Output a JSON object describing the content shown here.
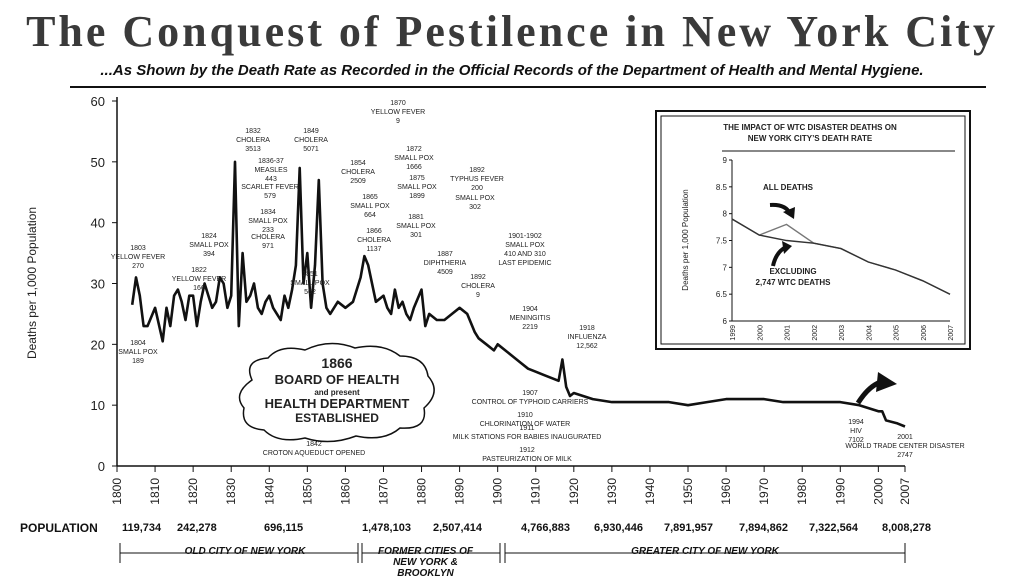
{
  "title": "The Conquest of Pestilence in New York City",
  "subtitle": "...As Shown by the Death Rate as Recorded in the Official Records of the Department of Health and Mental Hygiene.",
  "chart_data": [
    {
      "type": "line",
      "ylabel": "Deaths per 1,000 Population",
      "ylim": [
        0,
        60
      ],
      "xlim": [
        1800,
        2007
      ],
      "yticks": [
        0,
        10,
        20,
        30,
        40,
        50,
        60
      ],
      "xticks": [
        1800,
        1810,
        1820,
        1830,
        1840,
        1850,
        1860,
        1870,
        1880,
        1890,
        1900,
        1910,
        1920,
        1930,
        1940,
        1950,
        1960,
        1970,
        1980,
        1990,
        2000,
        2007
      ],
      "series": [
        {
          "x": [
            1804,
            1805,
            1806,
            1807,
            1808,
            1810,
            1812,
            1813,
            1814,
            1815,
            1816,
            1817,
            1818,
            1819,
            1820,
            1821,
            1822,
            1823,
            1824,
            1825,
            1826,
            1827,
            1828,
            1829,
            1830,
            1831,
            1832,
            1833,
            1834,
            1835,
            1836,
            1837,
            1838,
            1839,
            1840,
            1841,
            1842,
            1843,
            1844,
            1845,
            1846,
            1847,
            1848,
            1849,
            1850,
            1851,
            1852,
            1853,
            1854,
            1855,
            1856,
            1858,
            1860,
            1862,
            1864,
            1865,
            1866,
            1868,
            1870,
            1871,
            1872,
            1873,
            1874,
            1875,
            1876,
            1877,
            1878,
            1880,
            1881,
            1882,
            1884,
            1886,
            1888,
            1890,
            1892,
            1894,
            1895,
            1897,
            1899,
            1900,
            1902,
            1904,
            1906,
            1908,
            1910,
            1912,
            1914,
            1916,
            1917,
            1918,
            1919,
            1920,
            1925,
            1930,
            1935,
            1940,
            1945,
            1950,
            1955,
            1960,
            1965,
            1970,
            1975,
            1980,
            1985,
            1990,
            1995,
            2000,
            2001,
            2002,
            2005,
            2007
          ],
          "values": [
            26.5,
            31,
            28,
            23,
            23,
            26,
            20.5,
            26,
            23,
            28,
            29,
            27,
            24,
            28,
            28,
            23,
            27,
            30,
            28,
            26,
            27,
            31,
            30,
            26,
            28,
            50,
            23,
            35,
            27,
            28,
            30,
            26,
            25,
            27,
            28,
            26,
            25,
            24,
            28,
            26,
            29,
            33,
            49,
            30,
            35,
            26,
            33,
            47,
            30,
            26,
            25,
            27,
            26,
            27,
            31,
            34.5,
            33,
            27,
            28,
            26,
            25,
            29,
            26,
            27,
            25,
            24,
            26,
            29,
            23,
            25,
            24,
            24,
            25,
            26,
            25,
            22,
            21,
            20,
            19,
            20,
            19,
            18,
            17,
            16,
            15.5,
            15,
            14.5,
            14,
            17.5,
            13,
            11.5,
            12,
            11,
            10.5,
            10.5,
            10.5,
            10.5,
            10,
            10.5,
            11,
            11,
            11,
            10.5,
            10.5,
            10.5,
            10.5,
            10,
            9,
            9,
            7.5,
            7,
            6.5
          ]
        }
      ],
      "annotations": [
        [
          "1803",
          "YELLOW FEVER",
          "270"
        ],
        [
          "1804",
          "SMALL POX",
          "189"
        ],
        [
          "1822",
          "YELLOW FEVER",
          "166"
        ],
        [
          "1824",
          "SMALL POX",
          "394"
        ],
        [
          "1832",
          "CHOLERA",
          "3513"
        ],
        [
          "1836-37",
          "MEASLES",
          "443"
        ],
        [
          "SCARLET FEVER",
          "579"
        ],
        [
          "1834",
          "SMALL POX",
          "233"
        ],
        [
          "CHOLERA",
          "971"
        ],
        [
          "1849",
          "CHOLERA",
          "5071"
        ],
        [
          "1851",
          "SMALL POX",
          "562"
        ],
        [
          "1854",
          "CHOLERA",
          "2509"
        ],
        [
          "1865",
          "SMALL POX",
          "664"
        ],
        [
          "1866",
          "CHOLERA",
          "1137"
        ],
        [
          "1870",
          "YELLOW FEVER",
          "9"
        ],
        [
          "1872",
          "SMALL POX",
          "1666"
        ],
        [
          "1875",
          "SMALL POX",
          "1899"
        ],
        [
          "1881",
          "SMALL POX",
          "301"
        ],
        [
          "1887",
          "DIPHTHERIA",
          "4509"
        ],
        [
          "1892",
          "TYPHUS FEVER",
          "200"
        ],
        [
          "SMALL POX",
          "302"
        ],
        [
          "1901-1902",
          "SMALL POX",
          "410 AND 310",
          "LAST EPIDEMIC"
        ],
        [
          "1892",
          "CHOLERA",
          "9"
        ],
        [
          "1904",
          "MENINGITIS",
          "2219"
        ],
        [
          "1918",
          "INFLUENZA",
          "12,562"
        ],
        [
          "1907",
          "CONTROL OF TYPHOID CARRIERS"
        ],
        [
          "1910",
          "CHLORINATION OF WATER"
        ],
        [
          "1911",
          "MILK STATIONS FOR BABIES INAUGURATED"
        ],
        [
          "1912",
          "PASTEURIZATION OF MILK"
        ],
        [
          "1842",
          "CROTON AQUEDUCT OPENED"
        ],
        [
          "1994",
          "HIV",
          "7102"
        ],
        [
          "2001",
          "WORLD TRADE CENTER DISASTER",
          "2747"
        ]
      ],
      "board_of_health": [
        "1866",
        "BOARD OF HEALTH",
        "and present",
        "HEALTH DEPARTMENT",
        "ESTABLISHED"
      ]
    },
    {
      "type": "line",
      "title": "THE IMPACT OF WTC DISASTER DEATHS ON NEW YORK CITY'S DEATH RATE",
      "ylabel": "Deaths per 1,000 Population",
      "ylim": [
        6,
        9
      ],
      "yticks": [
        6,
        6.5,
        7,
        7.5,
        8,
        8.5,
        9
      ],
      "categories": [
        "1999",
        "2000",
        "2001",
        "2002",
        "2003",
        "2004",
        "2005",
        "2006",
        "2007"
      ],
      "series": [
        {
          "name": "ALL DEATHS",
          "values": [
            7.9,
            7.6,
            7.8,
            7.45,
            7.35,
            7.1,
            6.95,
            6.75,
            6.5
          ]
        },
        {
          "name": "EXCLUDING 2,747 WTC DEATHS",
          "values": [
            7.9,
            7.6,
            7.5,
            7.45,
            7.35,
            7.1,
            6.95,
            6.75,
            6.5
          ]
        }
      ]
    }
  ],
  "population": {
    "label": "POPULATION",
    "values": [
      "119,734",
      "242,278",
      "696,115",
      "1,478,103",
      "2,507,414",
      "4,766,883",
      "6,930,446",
      "7,891,957",
      "7,894,862",
      "7,322,564",
      "8,008,278"
    ]
  },
  "eras": [
    "OLD CITY OF NEW YORK",
    "FORMER CITIES OF NEW YORK & BROOKLYN",
    "GREATER CITY OF NEW YORK"
  ]
}
